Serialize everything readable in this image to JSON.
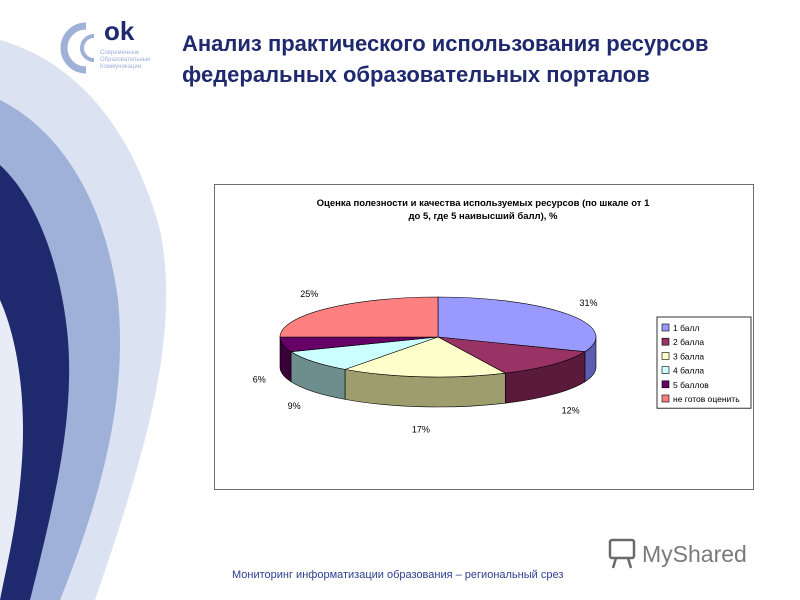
{
  "title": "Анализ практического использования ресурсов федеральных образовательных порталов",
  "logo": {
    "mark": "ok",
    "caption_lines": [
      "Современные",
      "Образовательные",
      "Коммуникации"
    ]
  },
  "footer": "Мониторинг информатизации образования – региональный срез",
  "watermark": "MyShared",
  "colors": {
    "title": "#1f2a6e",
    "band_dark": "#1f2a6e",
    "band_light": "#9fb0d9"
  },
  "chart_data": {
    "type": "pie",
    "title_lines": [
      "Оценка полезности и качества используемых ресурсов (по шкале от 1",
      "до 5, где 5 наивысший балл), %"
    ],
    "legend_placement": "right",
    "series": [
      {
        "name": "1 балл",
        "value": 31,
        "label": "31%",
        "color": "#9999ff",
        "side": "#5c5cb0"
      },
      {
        "name": "2 балла",
        "value": 12,
        "label": "12%",
        "color": "#993366",
        "side": "#5a1a3c"
      },
      {
        "name": "3 балла",
        "value": 17,
        "label": "17%",
        "color": "#ffffcc",
        "side": "#9d9d6e"
      },
      {
        "name": "4 балла",
        "value": 9,
        "label": "9%",
        "color": "#ccffff",
        "side": "#6e8d8d"
      },
      {
        "name": "5 баллов",
        "value": 6,
        "label": "6%",
        "color": "#660066",
        "side": "#3a003a"
      },
      {
        "name": "не готов оценить",
        "value": 25,
        "label": "25%",
        "color": "#ff8080",
        "side": "#b34d4d"
      }
    ]
  }
}
